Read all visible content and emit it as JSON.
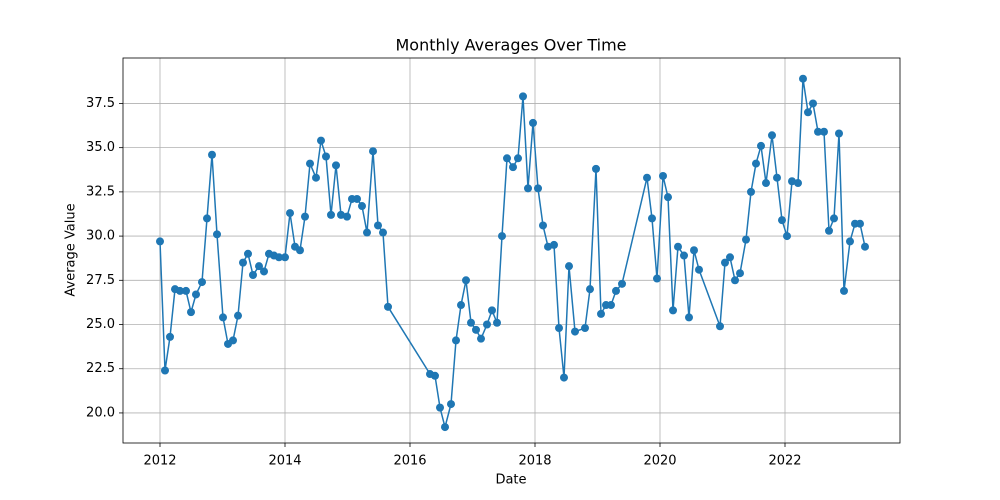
{
  "chart_data": {
    "type": "line",
    "title": "Monthly Averages Over Time",
    "xlabel": "Date",
    "ylabel": "Average Value",
    "x": [
      2012.0,
      2012.08,
      2012.16,
      2012.24,
      2012.32,
      2012.416,
      2012.496,
      2012.576,
      2012.672,
      2012.752,
      2012.832,
      2012.912,
      2013.008,
      2013.088,
      2013.168,
      2013.248,
      2013.328,
      2013.408,
      2013.488,
      2013.584,
      2013.664,
      2013.744,
      2013.824,
      2013.904,
      2014.0,
      2014.08,
      2014.16,
      2014.24,
      2014.32,
      2014.4,
      2014.496,
      2014.576,
      2014.656,
      2014.736,
      2014.816,
      2014.896,
      2014.992,
      2015.072,
      2015.152,
      2015.232,
      2015.312,
      2015.408,
      2015.488,
      2015.568,
      2015.648,
      2016.32,
      2016.4,
      2016.48,
      2016.56,
      2016.656,
      2016.736,
      2016.816,
      2016.896,
      2016.976,
      2017.056,
      2017.136,
      2017.232,
      2017.312,
      2017.392,
      2017.472,
      2017.552,
      2017.648,
      2017.728,
      2017.808,
      2017.888,
      2017.968,
      2018.048,
      2018.128,
      2018.208,
      2018.304,
      2018.384,
      2018.464,
      2018.544,
      2018.64,
      2018.8,
      2018.88,
      2018.976,
      2019.056,
      2019.136,
      2019.216,
      2019.296,
      2019.392,
      2019.792,
      2019.872,
      2019.952,
      2020.048,
      2020.128,
      2020.208,
      2020.288,
      2020.384,
      2020.464,
      2020.544,
      2020.624,
      2020.96,
      2021.04,
      2021.12,
      2021.2,
      2021.28,
      2021.376,
      2021.456,
      2021.536,
      2021.616,
      2021.696,
      2021.792,
      2021.872,
      2021.952,
      2022.032,
      2022.112,
      2022.208,
      2022.288,
      2022.368,
      2022.448,
      2022.528,
      2022.624,
      2022.704,
      2022.784,
      2022.864,
      2022.944,
      2023.04,
      2023.12,
      2023.2,
      2023.28
    ],
    "series": [
      {
        "name": "Average Value",
        "color": "#1f77b4",
        "values": [
          29.7,
          22.4,
          24.3,
          27.0,
          26.9,
          26.9,
          25.7,
          26.7,
          27.4,
          31.0,
          34.6,
          30.1,
          25.4,
          23.9,
          24.1,
          25.5,
          28.5,
          29.0,
          27.8,
          28.3,
          28.0,
          29.0,
          28.9,
          28.8,
          28.8,
          31.3,
          29.4,
          29.2,
          31.1,
          34.1,
          33.3,
          35.4,
          34.5,
          31.2,
          34.0,
          31.2,
          31.1,
          32.1,
          32.1,
          31.7,
          30.2,
          34.8,
          30.6,
          30.2,
          26.0,
          22.2,
          22.1,
          20.3,
          19.2,
          20.5,
          24.1,
          26.1,
          27.5,
          25.1,
          24.7,
          24.2,
          25.0,
          25.8,
          25.1,
          30.0,
          34.4,
          33.9,
          34.4,
          37.9,
          32.7,
          36.4,
          32.7,
          30.6,
          29.4,
          29.5,
          24.8,
          22.0,
          28.3,
          24.6,
          24.8,
          27.0,
          33.8,
          25.6,
          26.1,
          26.1,
          26.9,
          27.3,
          33.3,
          31.0,
          27.6,
          33.4,
          32.2,
          25.8,
          29.4,
          28.9,
          25.4,
          29.2,
          28.1,
          24.9,
          28.5,
          28.8,
          27.5,
          27.9,
          29.8,
          32.5,
          34.1,
          35.1,
          33.0,
          35.7,
          33.3,
          30.9,
          30.0,
          33.1,
          33.0,
          38.9,
          37.0,
          37.5,
          35.9,
          35.9,
          30.3,
          31.0,
          35.8,
          26.9,
          29.7,
          30.7,
          30.7,
          29.4
        ]
      }
    ],
    "xlim": [
      2011.408,
      2023.84
    ],
    "xticks": [
      2012,
      2014,
      2016,
      2018,
      2020,
      2022
    ],
    "ylim": [
      18.3,
      40.07
    ],
    "yticks": [
      {
        "value": 20,
        "label": "20.0"
      },
      {
        "value": 22.5,
        "label": "22.5"
      },
      {
        "value": 25,
        "label": "25.0"
      },
      {
        "value": 27.5,
        "label": "27.5"
      },
      {
        "value": 30,
        "label": "30.0"
      },
      {
        "value": 32.5,
        "label": "32.5"
      },
      {
        "value": 35,
        "label": "35.0"
      },
      {
        "value": 37.5,
        "label": "37.5"
      }
    ],
    "grid": true
  }
}
